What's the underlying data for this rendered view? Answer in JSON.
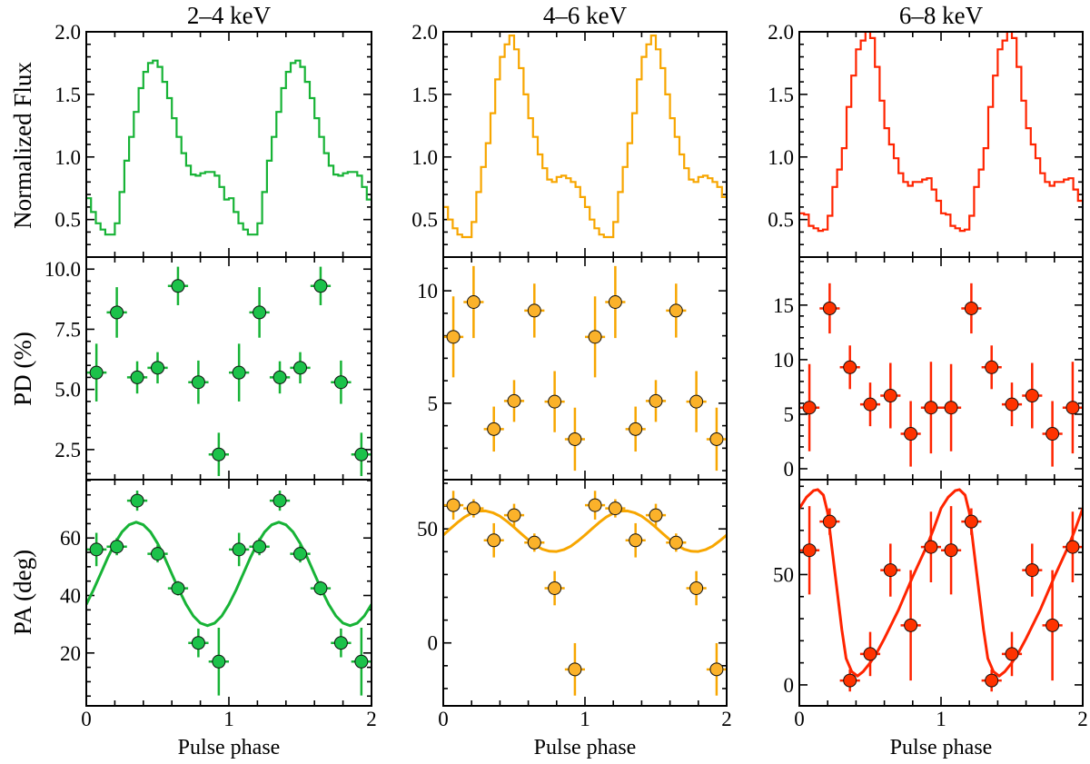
{
  "figure": {
    "ylabels": {
      "flux": "Normalized Flux",
      "pd": "PD (%)",
      "pa": "PA (deg)"
    },
    "xlabel": "Pulse phase"
  },
  "chart_data": [
    {
      "title": "2–4 keV",
      "color": "#17b336",
      "marker_color": "#1cc24a",
      "xlim": [
        0,
        2
      ],
      "xticks": [
        {
          "v": 0,
          "label": "0"
        },
        {
          "v": 1,
          "label": "1"
        },
        {
          "v": 2,
          "label": "2"
        }
      ],
      "x_minor_step": 0.2,
      "flux": {
        "type": "line",
        "style": "step",
        "ylabel": "Normalized Flux",
        "ylim": [
          0.2,
          2.0
        ],
        "yticks": [
          {
            "v": 0.5,
            "label": "0.5"
          },
          {
            "v": 1.0,
            "label": "1.0"
          },
          {
            "v": 1.5,
            "label": "1.5"
          },
          {
            "v": 2.0,
            "label": "2.0"
          }
        ],
        "y_minor_step": 0.1,
        "bins_per_cycle": 30,
        "values": [
          0.67,
          0.56,
          0.47,
          0.42,
          0.38,
          0.38,
          0.47,
          0.72,
          0.97,
          1.16,
          1.36,
          1.55,
          1.68,
          1.75,
          1.77,
          1.72,
          1.6,
          1.47,
          1.31,
          1.16,
          1.03,
          0.93,
          0.86,
          0.85,
          0.87,
          0.88,
          0.88,
          0.85,
          0.76,
          0.66
        ]
      },
      "pd": {
        "type": "scatter",
        "ylabel": "PD (%)",
        "ylim": [
          1.25,
          10.5
        ],
        "yticks": [
          {
            "v": 2.5,
            "label": "2.5"
          },
          {
            "v": 5.0,
            "label": "5.0"
          },
          {
            "v": 7.5,
            "label": "7.5"
          },
          {
            "v": 10.0,
            "label": "10.0"
          }
        ],
        "y_minor_step": 0.5,
        "x": [
          0.071,
          0.214,
          0.357,
          0.5,
          0.643,
          0.786,
          0.929,
          1.071,
          1.214,
          1.357,
          1.5,
          1.643,
          1.786,
          1.929
        ],
        "x_err": 0.071,
        "y": [
          5.7,
          8.2,
          5.5,
          5.9,
          9.3,
          5.3,
          2.3,
          5.7,
          8.2,
          5.5,
          5.9,
          9.3,
          5.3,
          2.3
        ],
        "y_err": [
          1.2,
          1.05,
          0.67,
          0.65,
          0.8,
          0.9,
          0.9,
          1.2,
          1.05,
          0.67,
          0.65,
          0.8,
          0.9,
          0.9
        ]
      },
      "pa": {
        "type": "scatter",
        "ylabel": "PA (deg)",
        "ylim": [
          1.6,
          80.3
        ],
        "yticks": [
          {
            "v": 20,
            "label": "20"
          },
          {
            "v": 40,
            "label": "40"
          },
          {
            "v": 60,
            "label": "60"
          }
        ],
        "y_minor_step": 5,
        "x": [
          0.071,
          0.214,
          0.357,
          0.5,
          0.643,
          0.786,
          0.929,
          1.071,
          1.214,
          1.357,
          1.5,
          1.643,
          1.786,
          1.929
        ],
        "x_err": 0.071,
        "y": [
          56,
          57,
          73,
          54.5,
          42.5,
          23.5,
          17,
          56,
          57,
          73,
          54.5,
          42.5,
          23.5,
          17
        ],
        "y_err": [
          5.8,
          3,
          3.5,
          3,
          2.5,
          5,
          11.8,
          5.8,
          3,
          3.5,
          3,
          2.5,
          5,
          11.8
        ],
        "model_x": [
          0,
          0.05,
          0.1,
          0.15,
          0.2,
          0.25,
          0.3,
          0.35,
          0.4,
          0.45,
          0.5,
          0.55,
          0.6,
          0.65,
          0.7,
          0.75,
          0.8,
          0.85,
          0.9,
          0.95,
          1.0
        ],
        "model_y": [
          36.9,
          41.9,
          47.5,
          53.1,
          58.1,
          62.1,
          64.6,
          65.5,
          64.6,
          62.1,
          58.1,
          53.1,
          47.5,
          41.9,
          36.9,
          32.9,
          30.4,
          29.5,
          30.4,
          32.9,
          36.9
        ]
      }
    },
    {
      "title": "4–6 keV",
      "color": "#f7a600",
      "marker_color": "#fbb22a",
      "xlim": [
        0,
        2
      ],
      "xticks": [
        {
          "v": 0,
          "label": "0"
        },
        {
          "v": 1,
          "label": "1"
        },
        {
          "v": 2,
          "label": "2"
        }
      ],
      "x_minor_step": 0.2,
      "flux": {
        "type": "line",
        "style": "step",
        "ylabel": "Normalized Flux",
        "ylim": [
          0.2,
          2.0
        ],
        "yticks": [
          {
            "v": 0.5,
            "label": "0.5"
          },
          {
            "v": 1.0,
            "label": "1.0"
          },
          {
            "v": 1.5,
            "label": "1.5"
          },
          {
            "v": 2.0,
            "label": "2.0"
          }
        ],
        "y_minor_step": 0.1,
        "bins_per_cycle": 30,
        "values": [
          0.6,
          0.5,
          0.43,
          0.38,
          0.36,
          0.36,
          0.48,
          0.72,
          0.92,
          1.11,
          1.35,
          1.62,
          1.8,
          1.9,
          1.97,
          1.86,
          1.71,
          1.5,
          1.31,
          1.16,
          1.02,
          0.91,
          0.82,
          0.8,
          0.84,
          0.85,
          0.83,
          0.8,
          0.76,
          0.68
        ]
      },
      "pd": {
        "type": "scatter",
        "ylabel": "PD (%)",
        "ylim": [
          1.6,
          11.5
        ],
        "yticks": [
          {
            "v": 5,
            "label": "5"
          },
          {
            "v": 10,
            "label": "10"
          }
        ],
        "y_minor_step": 1,
        "x": [
          0.071,
          0.214,
          0.357,
          0.5,
          0.643,
          0.786,
          0.929,
          1.071,
          1.214,
          1.357,
          1.5,
          1.643,
          1.786,
          1.929
        ],
        "x_err": 0.071,
        "y": [
          7.95,
          9.5,
          3.85,
          5.1,
          9.12,
          5.07,
          3.4,
          7.95,
          9.5,
          3.85,
          5.1,
          9.12,
          5.07,
          3.4
        ],
        "y_err": [
          1.8,
          1.6,
          1.0,
          0.93,
          1.2,
          1.36,
          1.4,
          1.8,
          1.6,
          1.0,
          0.93,
          1.2,
          1.36,
          1.4
        ]
      },
      "pa": {
        "type": "scatter",
        "ylabel": "PA (deg)",
        "ylim": [
          -27.6,
          71.6
        ],
        "yticks": [
          {
            "v": 0,
            "label": "0"
          },
          {
            "v": 50,
            "label": "50"
          }
        ],
        "y_minor_step": 10,
        "x": [
          0.071,
          0.214,
          0.357,
          0.5,
          0.643,
          0.786,
          0.929,
          1.071,
          1.214,
          1.357,
          1.5,
          1.643,
          1.786,
          1.929
        ],
        "x_err": 0.071,
        "y": [
          60.4,
          59,
          45,
          56,
          44,
          24,
          -11.6,
          60.4,
          59,
          45,
          56,
          44,
          24,
          -11.6
        ],
        "y_err": [
          6.3,
          4,
          7.5,
          5,
          4,
          7.5,
          11.5,
          6.3,
          4,
          7.5,
          5,
          4,
          7.5,
          11.5
        ],
        "model_x": [
          0,
          0.05,
          0.1,
          0.15,
          0.2,
          0.25,
          0.3,
          0.35,
          0.4,
          0.45,
          0.5,
          0.55,
          0.6,
          0.65,
          0.7,
          0.75,
          0.8,
          0.85,
          0.9,
          0.95,
          1.0
        ],
        "model_y": [
          47.3,
          50.1,
          52.8,
          55.2,
          56.9,
          57.8,
          57.9,
          57.1,
          55.6,
          53.3,
          50.7,
          47.9,
          45.2,
          42.8,
          41.1,
          40.2,
          40.1,
          40.9,
          42.4,
          44.7,
          47.3
        ]
      }
    },
    {
      "title": "6–8 keV",
      "color": "#ff2400",
      "marker_color": "#ff3300",
      "xlim": [
        0,
        2
      ],
      "xticks": [
        {
          "v": 0,
          "label": "0"
        },
        {
          "v": 1,
          "label": "1"
        },
        {
          "v": 2,
          "label": "2"
        }
      ],
      "x_minor_step": 0.2,
      "flux": {
        "type": "line",
        "style": "step",
        "ylabel": "Normalized Flux",
        "ylim": [
          0.2,
          2.0
        ],
        "yticks": [
          {
            "v": 0.5,
            "label": "0.5"
          },
          {
            "v": 1.0,
            "label": "1.0"
          },
          {
            "v": 1.5,
            "label": "1.5"
          },
          {
            "v": 2.0,
            "label": "2.0"
          }
        ],
        "y_minor_step": 0.1,
        "bins_per_cycle": 30,
        "values": [
          0.55,
          0.54,
          0.45,
          0.43,
          0.41,
          0.42,
          0.53,
          0.76,
          0.9,
          1.07,
          1.4,
          1.65,
          1.86,
          1.93,
          2.05,
          1.95,
          1.72,
          1.45,
          1.23,
          1.1,
          0.99,
          0.87,
          0.8,
          0.77,
          0.8,
          0.8,
          0.82,
          0.83,
          0.74,
          0.65
        ]
      },
      "pd": {
        "type": "scatter",
        "ylabel": "PD (%)",
        "ylim": [
          -1,
          19.4
        ],
        "yticks": [
          {
            "v": 0,
            "label": "0"
          },
          {
            "v": 5,
            "label": "5"
          },
          {
            "v": 10,
            "label": "10"
          },
          {
            "v": 15,
            "label": "15"
          }
        ],
        "y_minor_step": 1,
        "x": [
          0.071,
          0.214,
          0.357,
          0.5,
          0.643,
          0.786,
          0.929,
          1.071,
          1.214,
          1.357,
          1.5,
          1.643,
          1.786,
          1.929
        ],
        "x_err": 0.071,
        "y": [
          5.6,
          14.7,
          9.3,
          5.9,
          6.7,
          3.2,
          5.6,
          5.6,
          14.7,
          9.3,
          5.9,
          6.7,
          3.2,
          5.6
        ],
        "y_err": [
          4,
          2.3,
          2,
          2,
          3,
          3,
          4.2,
          4,
          2.3,
          2,
          2,
          3,
          3,
          4.2
        ]
      },
      "pa": {
        "type": "scatter",
        "ylabel": "PA (deg)",
        "ylim": [
          -9.5,
          93
        ],
        "yticks": [
          {
            "v": 0,
            "label": "0"
          },
          {
            "v": 50,
            "label": "50"
          }
        ],
        "y_minor_step": 10,
        "x": [
          0.071,
          0.214,
          0.357,
          0.5,
          0.643,
          0.786,
          0.929,
          1.071,
          1.214,
          1.357,
          1.5,
          1.643,
          1.786,
          1.929
        ],
        "x_err": 0.071,
        "y": [
          61,
          74,
          2,
          14,
          52,
          27,
          62.5,
          61,
          74,
          2,
          14,
          52,
          27,
          62.5
        ],
        "y_err": [
          20,
          6,
          5,
          10,
          12,
          25,
          16,
          20,
          6,
          5,
          10,
          12,
          25,
          16
        ],
        "model_x": [
          0,
          0.05,
          0.1,
          0.13,
          0.17,
          0.2,
          0.23,
          0.27,
          0.3,
          0.33,
          0.37,
          0.41,
          0.45,
          0.5,
          0.55,
          0.6,
          0.7,
          0.8,
          0.9,
          0.95,
          1.0
        ],
        "model_y": [
          80,
          85,
          88,
          88.5,
          86,
          78,
          62,
          41,
          25,
          12,
          6,
          4,
          6,
          10,
          15,
          21,
          34,
          49,
          63,
          71,
          80
        ]
      }
    }
  ]
}
